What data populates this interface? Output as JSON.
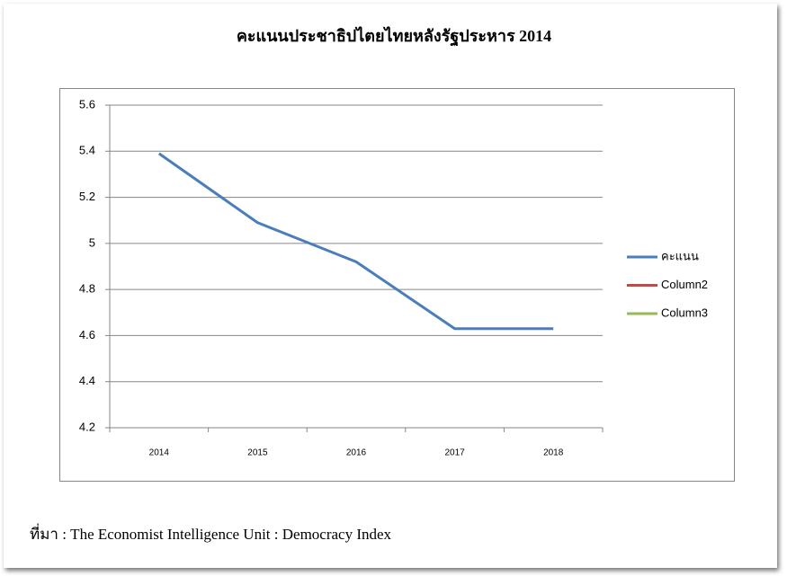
{
  "chart_data": {
    "type": "line",
    "title": "คะแนนประชาธิปไตยไทยหลังรัฐประหาร 2014",
    "categories": [
      "2014",
      "2015",
      "2016",
      "2017",
      "2018"
    ],
    "series": [
      {
        "name": "คะแนน",
        "color": "#4a7ebb",
        "values": [
          5.39,
          5.09,
          4.92,
          4.63,
          4.63
        ]
      },
      {
        "name": "Column2",
        "color": "#be4b48",
        "values": [
          null,
          null,
          null,
          null,
          null
        ]
      },
      {
        "name": "Column3",
        "color": "#98b954",
        "values": [
          null,
          null,
          null,
          null,
          null
        ]
      }
    ],
    "ylim": [
      4.2,
      5.6
    ],
    "yticks": [
      4.2,
      4.4,
      4.6,
      4.8,
      5,
      5.2,
      5.4,
      5.6
    ],
    "grid": true,
    "legend": "right",
    "source": "ที่มา : The Economist Intelligence Unit : Democracy Index"
  }
}
